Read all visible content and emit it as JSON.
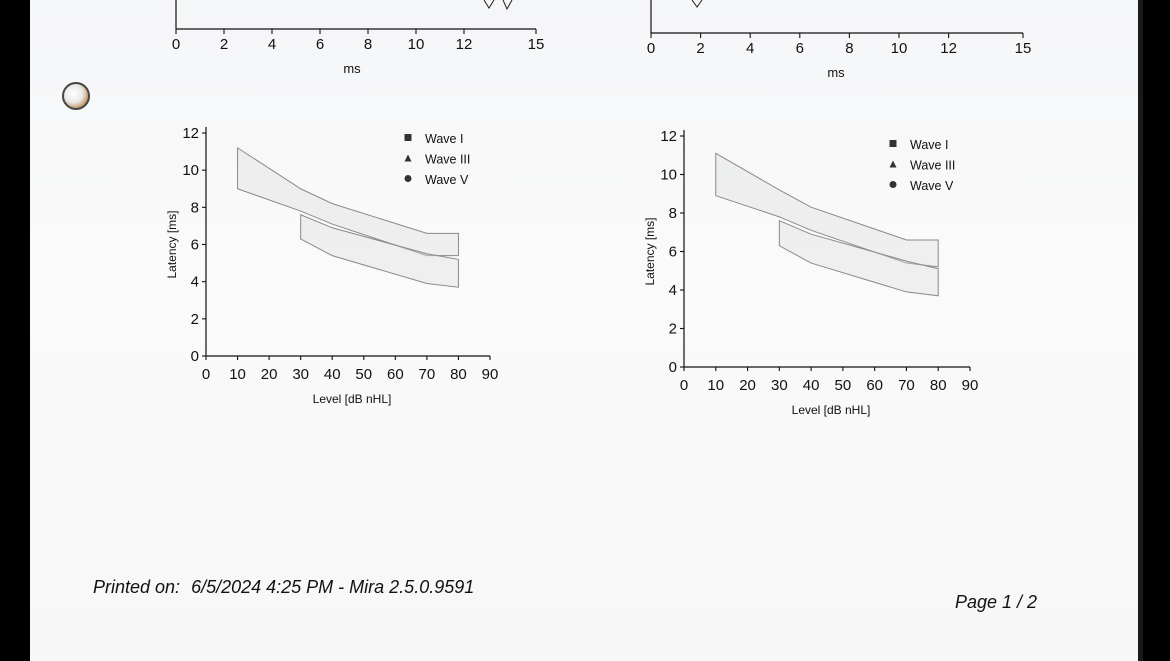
{
  "footer": {
    "printed_label": "Printed on:",
    "printed_value": "6/5/2024 4:25 PM - Mira 2.5.0.9591",
    "page": "Page 1 / 2"
  },
  "chart_data": [
    {
      "type": "line",
      "id": "waveform-left",
      "xlabel": "ms",
      "ylabel": "",
      "xlim": [
        0,
        15
      ],
      "x_ticks": [
        0,
        2,
        4,
        6,
        8,
        10,
        12,
        15
      ]
    },
    {
      "type": "line",
      "id": "waveform-right",
      "xlabel": "ms",
      "ylabel": "",
      "xlim": [
        0,
        15
      ],
      "x_ticks": [
        0,
        2,
        4,
        6,
        8,
        10,
        12,
        15
      ]
    },
    {
      "type": "area",
      "id": "latency-left",
      "xlabel": "Level [dB nHL]",
      "ylabel": "Latency [ms]",
      "xlim": [
        0,
        90
      ],
      "ylim": [
        0,
        12
      ],
      "x_ticks": [
        0,
        10,
        20,
        30,
        40,
        50,
        60,
        70,
        80,
        90
      ],
      "y_ticks": [
        0,
        2,
        4,
        6,
        8,
        10,
        12
      ],
      "legend_position": "top-right",
      "legend": [
        {
          "name": "Wave I",
          "marker": "square"
        },
        {
          "name": "Wave III",
          "marker": "triangle"
        },
        {
          "name": "Wave V",
          "marker": "circle"
        }
      ],
      "series": [
        {
          "name": "Wave V",
          "x": [
            10,
            30,
            40,
            70,
            80
          ],
          "upper": [
            11.2,
            9,
            8.2,
            6.6,
            6.6
          ],
          "lower": [
            9,
            7.8,
            7.1,
            5.4,
            5.4
          ]
        },
        {
          "name": "Wave III",
          "x": [
            30,
            40,
            70,
            80
          ],
          "upper": [
            7.6,
            6.9,
            5.5,
            5.2
          ],
          "lower": [
            6.3,
            5.4,
            3.9,
            3.7
          ]
        }
      ]
    },
    {
      "type": "area",
      "id": "latency-right",
      "xlabel": "Level [dB nHL]",
      "ylabel": "Latency [ms]",
      "xlim": [
        0,
        90
      ],
      "ylim": [
        0,
        12
      ],
      "x_ticks": [
        0,
        10,
        20,
        30,
        40,
        50,
        60,
        70,
        80,
        90
      ],
      "y_ticks": [
        0,
        2,
        4,
        6,
        8,
        10,
        12
      ],
      "legend_position": "top-right",
      "legend": [
        {
          "name": "Wave I",
          "marker": "square"
        },
        {
          "name": "Wave III",
          "marker": "triangle"
        },
        {
          "name": "Wave V",
          "marker": "circle"
        }
      ],
      "series": [
        {
          "name": "Wave V",
          "x": [
            10,
            30,
            40,
            70,
            80
          ],
          "upper": [
            11.1,
            9.2,
            8.3,
            6.6,
            6.6
          ],
          "lower": [
            8.9,
            7.8,
            7.1,
            5.4,
            5.2
          ]
        },
        {
          "name": "Wave III",
          "x": [
            30,
            40,
            70,
            80
          ],
          "upper": [
            7.6,
            6.9,
            5.5,
            5.1
          ],
          "lower": [
            6.3,
            5.4,
            3.9,
            3.7
          ]
        }
      ]
    }
  ]
}
